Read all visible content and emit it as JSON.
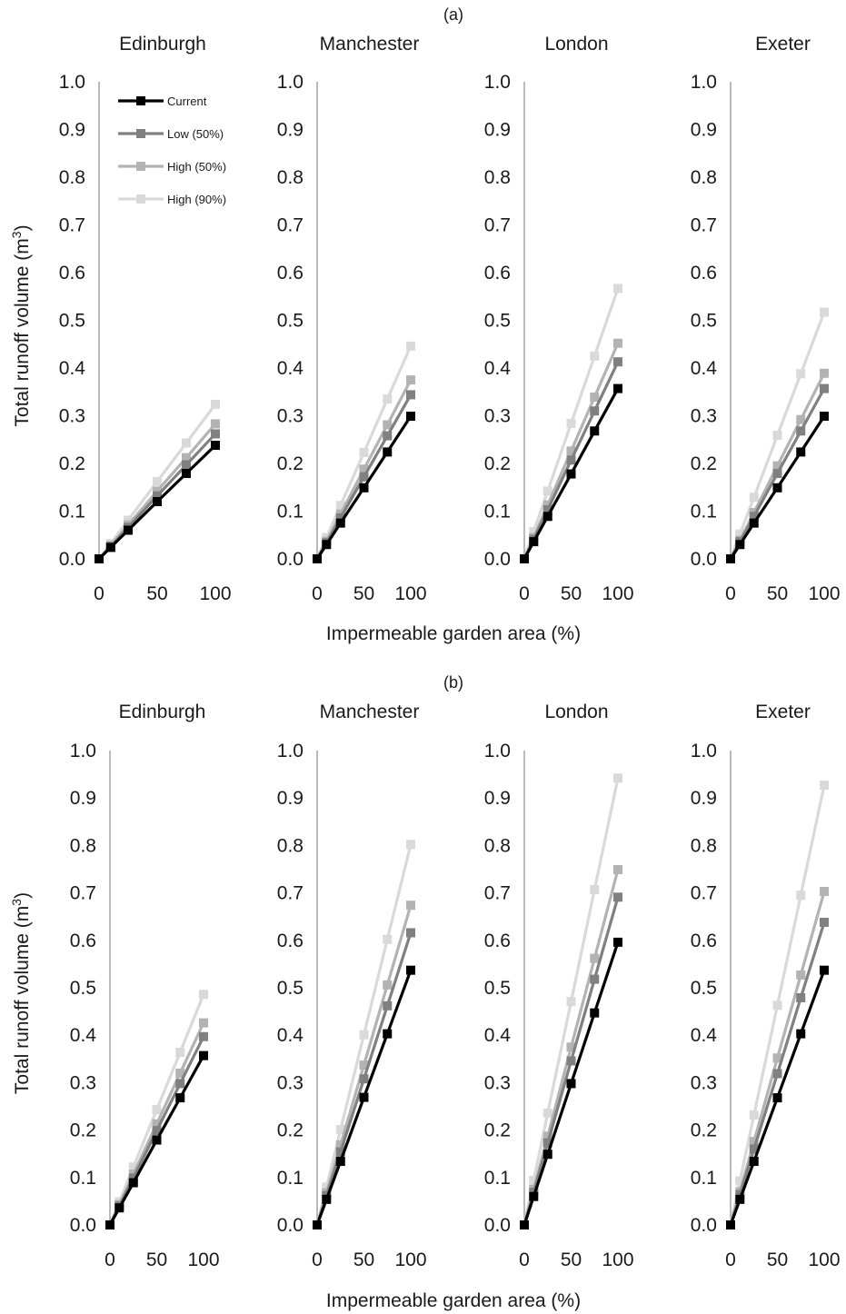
{
  "figure": {
    "x_axis_title": "Impermeable garden area (%)",
    "y_axis_title_main": "Total runoff volume (m",
    "y_axis_title_sup": "3",
    "y_axis_title_end": ")"
  },
  "legend": [
    {
      "name": "Current",
      "color": "#000000"
    },
    {
      "name": "Low (50%)",
      "color": "#808080"
    },
    {
      "name": "High (50%)",
      "color": "#b3b3b3"
    },
    {
      "name": "High (90%)",
      "color": "#d9d9d9"
    }
  ],
  "chart_data": [
    {
      "type": "line",
      "title": "(a)",
      "x": [
        0,
        10,
        25,
        50,
        75,
        100
      ],
      "xticks": [
        0,
        50,
        100
      ],
      "ylim": [
        0,
        1
      ],
      "yticks": [
        "0.0",
        "0.1",
        "0.2",
        "0.3",
        "0.4",
        "0.5",
        "0.6",
        "0.7",
        "0.8",
        "0.9",
        "1.0"
      ],
      "cities": [
        {
          "city": "Edinburgh",
          "series": [
            {
              "name": "Current",
              "values": [
                0,
                0.024,
                0.06,
                0.12,
                0.179,
                0.238
              ]
            },
            {
              "name": "Low (50%)",
              "values": [
                0,
                0.026,
                0.066,
                0.132,
                0.197,
                0.262
              ]
            },
            {
              "name": "High (50%)",
              "values": [
                0,
                0.028,
                0.071,
                0.142,
                0.212,
                0.283
              ]
            },
            {
              "name": "High (90%)",
              "values": [
                0,
                0.032,
                0.081,
                0.162,
                0.243,
                0.324
              ]
            }
          ]
        },
        {
          "city": "Manchester",
          "series": [
            {
              "name": "Current",
              "values": [
                0,
                0.03,
                0.075,
                0.149,
                0.224,
                0.299
              ]
            },
            {
              "name": "Low (50%)",
              "values": [
                0,
                0.034,
                0.086,
                0.172,
                0.258,
                0.344
              ]
            },
            {
              "name": "High (50%)",
              "values": [
                0,
                0.037,
                0.094,
                0.188,
                0.281,
                0.375
              ]
            },
            {
              "name": "High (90%)",
              "values": [
                0,
                0.045,
                0.112,
                0.223,
                0.335,
                0.446
              ]
            }
          ]
        },
        {
          "city": "London",
          "series": [
            {
              "name": "Current",
              "values": [
                0,
                0.036,
                0.089,
                0.178,
                0.268,
                0.357
              ]
            },
            {
              "name": "Low (50%)",
              "values": [
                0,
                0.041,
                0.103,
                0.207,
                0.31,
                0.413
              ]
            },
            {
              "name": "High (50%)",
              "values": [
                0,
                0.045,
                0.113,
                0.226,
                0.339,
                0.452
              ]
            },
            {
              "name": "High (90%)",
              "values": [
                0,
                0.057,
                0.142,
                0.284,
                0.425,
                0.567
              ]
            }
          ]
        },
        {
          "city": "Exeter",
          "series": [
            {
              "name": "Current",
              "values": [
                0,
                0.03,
                0.075,
                0.149,
                0.224,
                0.299
              ]
            },
            {
              "name": "Low (50%)",
              "values": [
                0,
                0.036,
                0.089,
                0.179,
                0.268,
                0.357
              ]
            },
            {
              "name": "High (50%)",
              "values": [
                0,
                0.039,
                0.097,
                0.195,
                0.292,
                0.389
              ]
            },
            {
              "name": "High (90%)",
              "values": [
                0,
                0.052,
                0.129,
                0.259,
                0.388,
                0.517
              ]
            }
          ]
        }
      ]
    },
    {
      "type": "line",
      "title": "(b)",
      "x": [
        0,
        10,
        25,
        50,
        75,
        100
      ],
      "xticks": [
        0,
        50,
        100
      ],
      "ylim": [
        0,
        1
      ],
      "yticks": [
        "0.0",
        "0.1",
        "0.2",
        "0.3",
        "0.4",
        "0.5",
        "0.6",
        "0.7",
        "0.8",
        "0.9",
        "1.0"
      ],
      "cities": [
        {
          "city": "Edinburgh",
          "series": [
            {
              "name": "Current",
              "values": [
                0,
                0.036,
                0.089,
                0.179,
                0.268,
                0.357
              ]
            },
            {
              "name": "Low (50%)",
              "values": [
                0,
                0.04,
                0.099,
                0.199,
                0.298,
                0.397
              ]
            },
            {
              "name": "High (50%)",
              "values": [
                0,
                0.043,
                0.107,
                0.213,
                0.32,
                0.426
              ]
            },
            {
              "name": "High (90%)",
              "values": [
                0,
                0.049,
                0.122,
                0.243,
                0.364,
                0.486
              ]
            }
          ]
        },
        {
          "city": "Manchester",
          "series": [
            {
              "name": "Current",
              "values": [
                0,
                0.054,
                0.134,
                0.269,
                0.403,
                0.537
              ]
            },
            {
              "name": "Low (50%)",
              "values": [
                0,
                0.062,
                0.154,
                0.308,
                0.462,
                0.616
              ]
            },
            {
              "name": "High (50%)",
              "values": [
                0,
                0.068,
                0.169,
                0.337,
                0.506,
                0.674
              ]
            },
            {
              "name": "High (90%)",
              "values": [
                0,
                0.08,
                0.201,
                0.401,
                0.602,
                0.802
              ]
            }
          ]
        },
        {
          "city": "London",
          "series": [
            {
              "name": "Current",
              "values": [
                0,
                0.06,
                0.149,
                0.298,
                0.447,
                0.596
              ]
            },
            {
              "name": "Low (50%)",
              "values": [
                0,
                0.069,
                0.173,
                0.346,
                0.518,
                0.691
              ]
            },
            {
              "name": "High (50%)",
              "values": [
                0,
                0.075,
                0.187,
                0.375,
                0.562,
                0.749
              ]
            },
            {
              "name": "High (90%)",
              "values": [
                0,
                0.094,
                0.236,
                0.471,
                0.707,
                0.942
              ]
            }
          ]
        },
        {
          "city": "Exeter",
          "series": [
            {
              "name": "Current",
              "values": [
                0,
                0.054,
                0.134,
                0.268,
                0.403,
                0.537
              ]
            },
            {
              "name": "Low (50%)",
              "values": [
                0,
                0.064,
                0.16,
                0.319,
                0.479,
                0.638
              ]
            },
            {
              "name": "High (50%)",
              "values": [
                0,
                0.07,
                0.176,
                0.352,
                0.527,
                0.703
              ]
            },
            {
              "name": "High (90%)",
              "values": [
                0,
                0.093,
                0.232,
                0.463,
                0.695,
                0.927
              ]
            }
          ]
        }
      ]
    }
  ]
}
